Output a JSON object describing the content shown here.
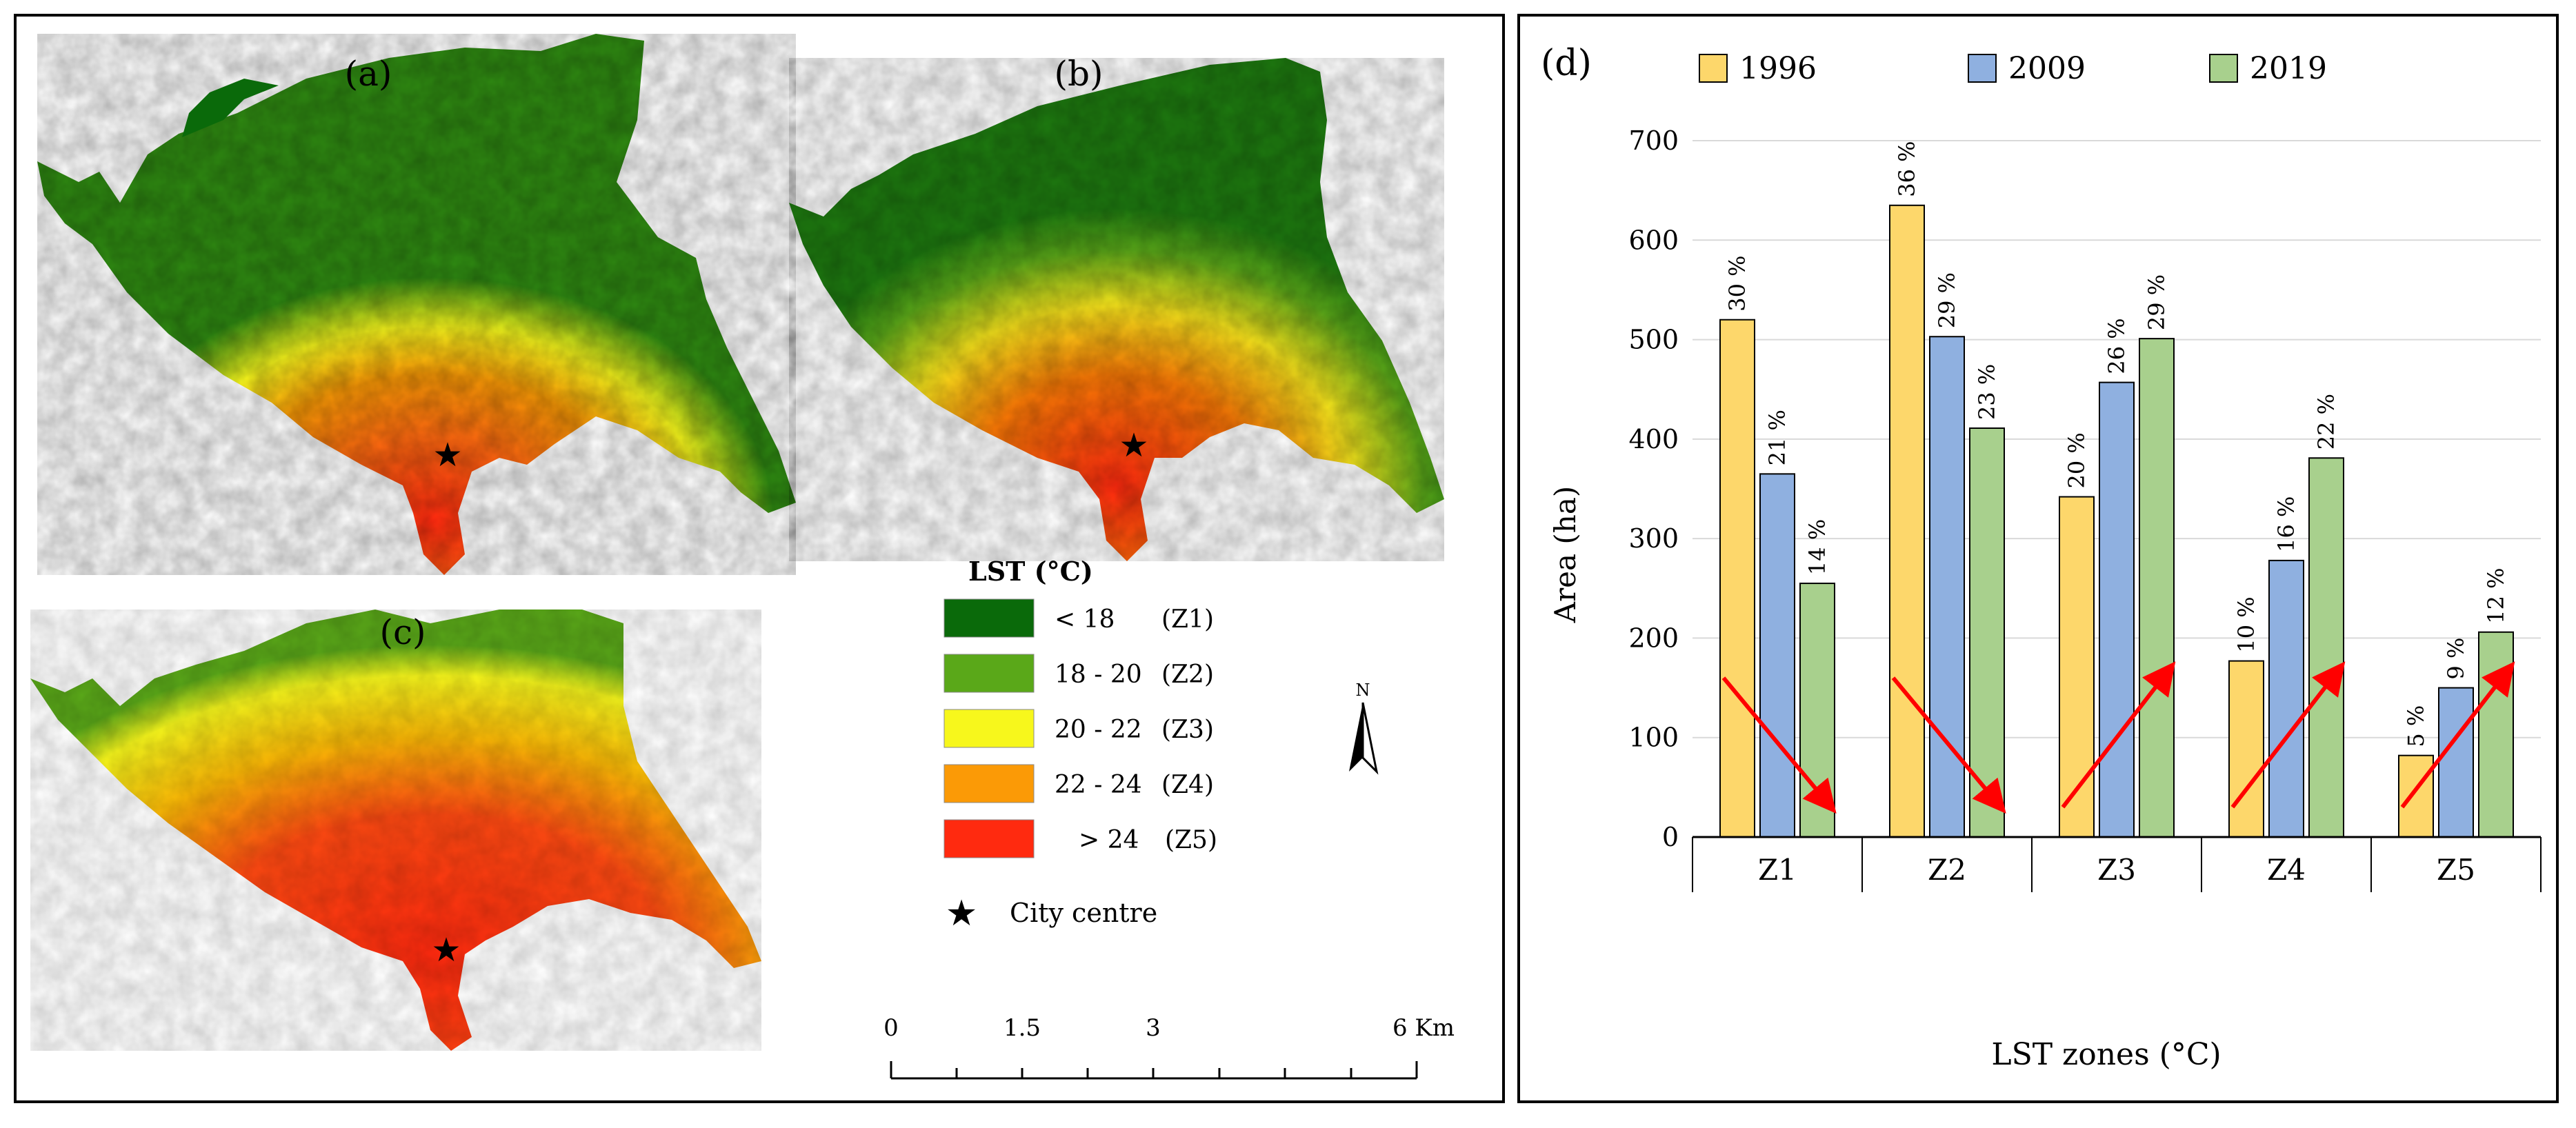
{
  "maps": {
    "labels": [
      "(a)",
      "(b)",
      "(c)"
    ],
    "north_label": "N",
    "city_centre_label": "City centre",
    "scale_ticks": [
      "0",
      "1.5",
      "3",
      "6 Km"
    ]
  },
  "legend": {
    "title": "LST (°C)",
    "items": [
      {
        "range": "< 18",
        "zone": "(Z1)",
        "color": "#0a6a0a"
      },
      {
        "range": "18 - 20",
        "zone": "(Z2)",
        "color": "#5aa819"
      },
      {
        "range": "20 - 22",
        "zone": "(Z3)",
        "color": "#f7f71c"
      },
      {
        "range": "22 - 24",
        "zone": "(Z4)",
        "color": "#fb9a06"
      },
      {
        "range": "> 24",
        "zone": "(Z5)",
        "color": "#ff2a0f"
      }
    ]
  },
  "chart_data": {
    "type": "bar",
    "panel_label": "(d)",
    "categories": [
      "Z1",
      "Z2",
      "Z3",
      "Z4",
      "Z5"
    ],
    "series": [
      {
        "name": "1996",
        "color": "#fdd76b",
        "values": [
          520,
          635,
          342,
          177,
          82
        ],
        "labels": [
          "30 %",
          "36 %",
          "20 %",
          "10 %",
          "5 %"
        ]
      },
      {
        "name": "2009",
        "color": "#8fb0e0",
        "values": [
          365,
          503,
          457,
          278,
          150
        ],
        "labels": [
          "21 %",
          "29 %",
          "26 %",
          "16 %",
          "9 %"
        ]
      },
      {
        "name": "2019",
        "color": "#a8d08d",
        "values": [
          255,
          411,
          501,
          381,
          206
        ],
        "labels": [
          "14 %",
          "23 %",
          "29 %",
          "22 %",
          "12 %"
        ]
      }
    ],
    "xlabel": "LST zones (°C)",
    "ylabel": "Area (ha)",
    "ylim": [
      0,
      700
    ],
    "yticks": [
      0,
      100,
      200,
      300,
      400,
      500,
      600,
      700
    ],
    "gridlines": true,
    "legend_position": "top",
    "trend_arrows": [
      "down",
      "down",
      "up",
      "up",
      "up"
    ],
    "arrow_color": "#ff0000"
  }
}
